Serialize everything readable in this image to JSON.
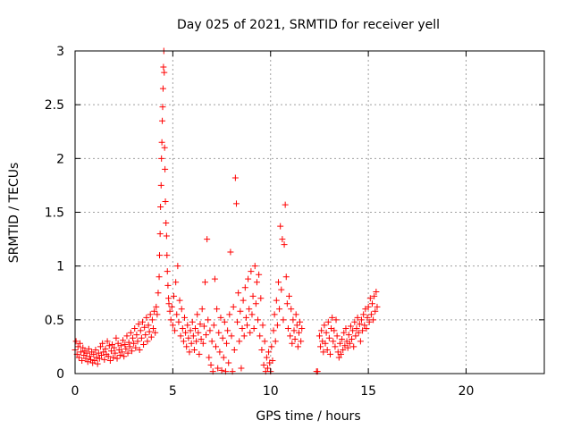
{
  "chart_data": {
    "type": "scatter",
    "title": "Day 025 of 2021, SRMTID for receiver yell",
    "xlabel": "GPS time / hours",
    "ylabel": "SRMTID / TECUs",
    "xlim": [
      0,
      24
    ],
    "ylim": [
      0,
      3
    ],
    "xticks": [
      0,
      5,
      10,
      15,
      20
    ],
    "xtick_labels": [
      "0",
      "5",
      "10",
      "15",
      "20"
    ],
    "yticks": [
      0,
      0.5,
      1,
      1.5,
      2,
      2.5,
      3
    ],
    "ytick_labels": [
      "0",
      "0.5",
      "1",
      "1.5",
      "2",
      "2.5",
      "3"
    ],
    "grid": true,
    "marker": "+",
    "series": [
      {
        "name": "SRMTID",
        "color": "#ff0000",
        "points": [
          [
            0.0,
            0.22
          ],
          [
            0.05,
            0.3
          ],
          [
            0.1,
            0.18
          ],
          [
            0.15,
            0.25
          ],
          [
            0.2,
            0.15
          ],
          [
            0.25,
            0.28
          ],
          [
            0.3,
            0.2
          ],
          [
            0.35,
            0.12
          ],
          [
            0.4,
            0.24
          ],
          [
            0.45,
            0.17
          ],
          [
            0.5,
            0.21
          ],
          [
            0.55,
            0.14
          ],
          [
            0.6,
            0.19
          ],
          [
            0.65,
            0.11
          ],
          [
            0.7,
            0.23
          ],
          [
            0.75,
            0.16
          ],
          [
            0.8,
            0.13
          ],
          [
            0.85,
            0.2
          ],
          [
            0.9,
            0.1
          ],
          [
            0.95,
            0.18
          ],
          [
            1.0,
            0.12
          ],
          [
            1.05,
            0.22
          ],
          [
            1.1,
            0.15
          ],
          [
            1.15,
            0.09
          ],
          [
            1.2,
            0.19
          ],
          [
            1.25,
            0.14
          ],
          [
            1.3,
            0.25
          ],
          [
            1.35,
            0.17
          ],
          [
            1.4,
            0.28
          ],
          [
            1.45,
            0.2
          ],
          [
            1.5,
            0.13
          ],
          [
            1.55,
            0.23
          ],
          [
            1.6,
            0.18
          ],
          [
            1.65,
            0.3
          ],
          [
            1.7,
            0.16
          ],
          [
            1.75,
            0.26
          ],
          [
            1.8,
            0.12
          ],
          [
            1.85,
            0.21
          ],
          [
            1.9,
            0.27
          ],
          [
            1.95,
            0.15
          ],
          [
            2.0,
            0.24
          ],
          [
            2.05,
            0.19
          ],
          [
            2.1,
            0.33
          ],
          [
            2.15,
            0.14
          ],
          [
            2.2,
            0.28
          ],
          [
            2.25,
            0.22
          ],
          [
            2.3,
            0.17
          ],
          [
            2.35,
            0.26
          ],
          [
            2.4,
            0.2
          ],
          [
            2.45,
            0.31
          ],
          [
            2.5,
            0.16
          ],
          [
            2.55,
            0.27
          ],
          [
            2.6,
            0.23
          ],
          [
            2.65,
            0.35
          ],
          [
            2.7,
            0.19
          ],
          [
            2.75,
            0.29
          ],
          [
            2.8,
            0.25
          ],
          [
            2.85,
            0.38
          ],
          [
            2.9,
            0.21
          ],
          [
            2.95,
            0.33
          ],
          [
            3.0,
            0.28
          ],
          [
            3.05,
            0.42
          ],
          [
            3.1,
            0.24
          ],
          [
            3.15,
            0.36
          ],
          [
            3.2,
            0.3
          ],
          [
            3.25,
            0.46
          ],
          [
            3.3,
            0.22
          ],
          [
            3.35,
            0.4
          ],
          [
            3.4,
            0.33
          ],
          [
            3.45,
            0.48
          ],
          [
            3.5,
            0.27
          ],
          [
            3.55,
            0.43
          ],
          [
            3.6,
            0.36
          ],
          [
            3.65,
            0.52
          ],
          [
            3.7,
            0.3
          ],
          [
            3.75,
            0.45
          ],
          [
            3.8,
            0.39
          ],
          [
            3.85,
            0.55
          ],
          [
            3.9,
            0.34
          ],
          [
            3.95,
            0.5
          ],
          [
            4.0,
            0.42
          ],
          [
            4.05,
            0.58
          ],
          [
            4.1,
            0.38
          ],
          [
            4.15,
            0.62
          ],
          [
            4.2,
            0.55
          ],
          [
            4.25,
            0.75
          ],
          [
            4.3,
            0.9
          ],
          [
            4.32,
            1.1
          ],
          [
            4.35,
            1.3
          ],
          [
            4.37,
            1.55
          ],
          [
            4.4,
            1.75
          ],
          [
            4.42,
            2.0
          ],
          [
            4.44,
            2.15
          ],
          [
            4.46,
            2.35
          ],
          [
            4.48,
            2.48
          ],
          [
            4.5,
            2.65
          ],
          [
            4.52,
            2.85
          ],
          [
            4.54,
            3.0
          ],
          [
            4.56,
            2.8
          ],
          [
            4.58,
            2.1
          ],
          [
            4.6,
            1.9
          ],
          [
            4.62,
            1.6
          ],
          [
            4.65,
            1.4
          ],
          [
            4.68,
            1.28
          ],
          [
            4.7,
            1.1
          ],
          [
            4.72,
            0.95
          ],
          [
            4.75,
            0.82
          ],
          [
            4.78,
            0.7
          ],
          [
            4.8,
            0.65
          ],
          [
            4.85,
            0.58
          ],
          [
            4.9,
            0.5
          ],
          [
            4.95,
            0.62
          ],
          [
            5.0,
            0.45
          ],
          [
            5.05,
            0.72
          ],
          [
            5.1,
            0.4
          ],
          [
            5.15,
            0.85
          ],
          [
            5.2,
            0.55
          ],
          [
            5.25,
            1.0
          ],
          [
            5.3,
            0.48
          ],
          [
            5.35,
            0.68
          ],
          [
            5.4,
            0.35
          ],
          [
            5.45,
            0.6
          ],
          [
            5.5,
            0.42
          ],
          [
            5.55,
            0.3
          ],
          [
            5.6,
            0.52
          ],
          [
            5.65,
            0.38
          ],
          [
            5.7,
            0.25
          ],
          [
            5.75,
            0.45
          ],
          [
            5.8,
            0.33
          ],
          [
            5.85,
            0.2
          ],
          [
            5.9,
            0.4
          ],
          [
            5.95,
            0.28
          ],
          [
            6.0,
            0.48
          ],
          [
            6.05,
            0.35
          ],
          [
            6.1,
            0.22
          ],
          [
            6.15,
            0.42
          ],
          [
            6.2,
            0.3
          ],
          [
            6.25,
            0.55
          ],
          [
            6.3,
            0.38
          ],
          [
            6.35,
            0.18
          ],
          [
            6.4,
            0.46
          ],
          [
            6.45,
            0.32
          ],
          [
            6.5,
            0.6
          ],
          [
            6.55,
            0.28
          ],
          [
            6.6,
            0.44
          ],
          [
            6.65,
            0.85
          ],
          [
            6.7,
            0.36
          ],
          [
            6.75,
            1.25
          ],
          [
            6.8,
            0.5
          ],
          [
            6.85,
            0.15
          ],
          [
            6.9,
            0.4
          ],
          [
            6.95,
            0.08
          ],
          [
            7.0,
            0.3
          ],
          [
            7.05,
            0.02
          ],
          [
            7.1,
            0.45
          ],
          [
            7.15,
            0.88
          ],
          [
            7.2,
            0.25
          ],
          [
            7.25,
            0.6
          ],
          [
            7.3,
            0.05
          ],
          [
            7.35,
            0.38
          ],
          [
            7.4,
            0.2
          ],
          [
            7.45,
            0.52
          ],
          [
            7.5,
            0.03
          ],
          [
            7.55,
            0.33
          ],
          [
            7.6,
            0.15
          ],
          [
            7.65,
            0.48
          ],
          [
            7.7,
            0.02
          ],
          [
            7.75,
            0.28
          ],
          [
            7.8,
            0.4
          ],
          [
            7.85,
            0.1
          ],
          [
            7.9,
            0.55
          ],
          [
            7.95,
            1.13
          ],
          [
            8.0,
            0.35
          ],
          [
            8.05,
            0.02
          ],
          [
            8.1,
            0.62
          ],
          [
            8.15,
            0.22
          ],
          [
            8.2,
            1.82
          ],
          [
            8.25,
            1.58
          ],
          [
            8.3,
            0.48
          ],
          [
            8.35,
            0.75
          ],
          [
            8.4,
            0.3
          ],
          [
            8.45,
            0.58
          ],
          [
            8.5,
            0.05
          ],
          [
            8.55,
            0.42
          ],
          [
            8.6,
            0.68
          ],
          [
            8.65,
            0.35
          ],
          [
            8.7,
            0.8
          ],
          [
            8.75,
            0.52
          ],
          [
            8.8,
            0.45
          ],
          [
            8.85,
            0.88
          ],
          [
            8.9,
            0.6
          ],
          [
            8.95,
            0.38
          ],
          [
            9.0,
            0.95
          ],
          [
            9.05,
            0.55
          ],
          [
            9.1,
            0.72
          ],
          [
            9.15,
            0.42
          ],
          [
            9.2,
            1.0
          ],
          [
            9.25,
            0.65
          ],
          [
            9.3,
            0.85
          ],
          [
            9.35,
            0.5
          ],
          [
            9.4,
            0.92
          ],
          [
            9.45,
            0.35
          ],
          [
            9.5,
            0.7
          ],
          [
            9.55,
            0.22
          ],
          [
            9.6,
            0.45
          ],
          [
            9.65,
            0.08
          ],
          [
            9.7,
            0.3
          ],
          [
            9.75,
            0.02
          ],
          [
            9.8,
            0.15
          ],
          [
            9.85,
            0.05
          ],
          [
            9.9,
            0.2
          ],
          [
            9.95,
            0.1
          ],
          [
            10.0,
            0.02
          ],
          [
            10.05,
            0.25
          ],
          [
            10.1,
            0.12
          ],
          [
            10.15,
            0.4
          ],
          [
            10.2,
            0.55
          ],
          [
            10.25,
            0.3
          ],
          [
            10.3,
            0.68
          ],
          [
            10.35,
            0.45
          ],
          [
            10.4,
            0.85
          ],
          [
            10.45,
            0.6
          ],
          [
            10.5,
            1.37
          ],
          [
            10.55,
            0.78
          ],
          [
            10.6,
            1.25
          ],
          [
            10.65,
            0.5
          ],
          [
            10.7,
            1.2
          ],
          [
            10.75,
            1.57
          ],
          [
            10.8,
            0.9
          ],
          [
            10.85,
            0.65
          ],
          [
            10.9,
            0.42
          ],
          [
            10.95,
            0.72
          ],
          [
            11.0,
            0.35
          ],
          [
            11.05,
            0.6
          ],
          [
            11.1,
            0.28
          ],
          [
            11.15,
            0.5
          ],
          [
            11.2,
            0.4
          ],
          [
            11.25,
            0.32
          ],
          [
            11.3,
            0.55
          ],
          [
            11.35,
            0.45
          ],
          [
            11.4,
            0.25
          ],
          [
            11.45,
            0.38
          ],
          [
            11.5,
            0.48
          ],
          [
            11.55,
            0.3
          ],
          [
            11.6,
            0.42
          ],
          [
            12.35,
            0.02
          ],
          [
            12.4,
            0.02
          ],
          [
            12.5,
            0.35
          ],
          [
            12.55,
            0.25
          ],
          [
            12.6,
            0.4
          ],
          [
            12.65,
            0.3
          ],
          [
            12.7,
            0.2
          ],
          [
            12.75,
            0.45
          ],
          [
            12.8,
            0.28
          ],
          [
            12.85,
            0.38
          ],
          [
            12.9,
            0.22
          ],
          [
            12.95,
            0.48
          ],
          [
            13.0,
            0.33
          ],
          [
            13.05,
            0.18
          ],
          [
            13.1,
            0.42
          ],
          [
            13.15,
            0.52
          ],
          [
            13.2,
            0.3
          ],
          [
            13.25,
            0.4
          ],
          [
            13.3,
            0.25
          ],
          [
            13.35,
            0.5
          ],
          [
            13.4,
            0.35
          ],
          [
            13.45,
            0.2
          ],
          [
            13.5,
            0.15
          ],
          [
            13.55,
            0.28
          ],
          [
            13.6,
            0.18
          ],
          [
            13.65,
            0.32
          ],
          [
            13.7,
            0.22
          ],
          [
            13.75,
            0.38
          ],
          [
            13.8,
            0.26
          ],
          [
            13.85,
            0.42
          ],
          [
            13.9,
            0.3
          ],
          [
            13.95,
            0.24
          ],
          [
            14.0,
            0.36
          ],
          [
            14.05,
            0.28
          ],
          [
            14.1,
            0.44
          ],
          [
            14.15,
            0.32
          ],
          [
            14.2,
            0.4
          ],
          [
            14.25,
            0.25
          ],
          [
            14.3,
            0.48
          ],
          [
            14.35,
            0.35
          ],
          [
            14.4,
            0.42
          ],
          [
            14.45,
            0.52
          ],
          [
            14.5,
            0.38
          ],
          [
            14.55,
            0.46
          ],
          [
            14.6,
            0.3
          ],
          [
            14.65,
            0.5
          ],
          [
            14.7,
            0.4
          ],
          [
            14.75,
            0.55
          ],
          [
            14.8,
            0.45
          ],
          [
            14.85,
            0.6
          ],
          [
            14.9,
            0.42
          ],
          [
            14.95,
            0.52
          ],
          [
            15.0,
            0.62
          ],
          [
            15.05,
            0.48
          ],
          [
            15.1,
            0.7
          ],
          [
            15.15,
            0.55
          ],
          [
            15.2,
            0.65
          ],
          [
            15.25,
            0.5
          ],
          [
            15.3,
            0.72
          ],
          [
            15.35,
            0.58
          ],
          [
            15.4,
            0.76
          ],
          [
            15.45,
            0.62
          ]
        ]
      }
    ]
  }
}
